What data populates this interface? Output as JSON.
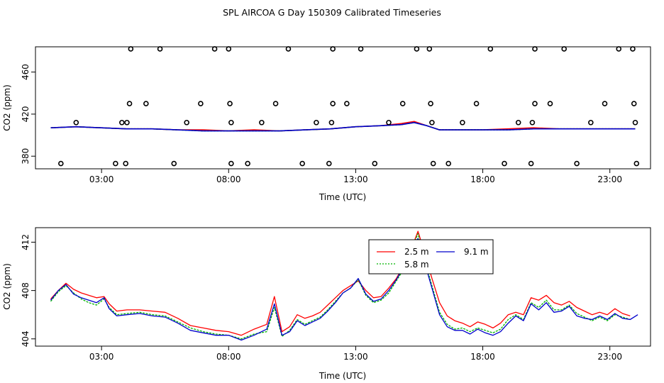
{
  "title": "SPL AIRCOA G  Day 150309  Calibrated Timeseries",
  "chart_data": [
    {
      "type": "scatter",
      "panel": "top",
      "xlabel": "Time (UTC)",
      "ylabel": "CO2 (ppm)",
      "xlim": [
        0.4,
        24.6
      ],
      "ylim": [
        368,
        484
      ],
      "xticks": [
        3,
        8,
        13,
        18,
        23
      ],
      "xtick_labels": [
        "03:00",
        "08:00",
        "13:00",
        "18:00",
        "23:00"
      ],
      "yticks": [
        380,
        420,
        460
      ],
      "ytick_labels": [
        "380",
        "420",
        "460"
      ],
      "markers": [
        {
          "x": 1.4,
          "y": 373
        },
        {
          "x": 2.0,
          "y": 412
        },
        {
          "x": 3.55,
          "y": 373
        },
        {
          "x": 3.8,
          "y": 412
        },
        {
          "x": 4.0,
          "y": 412
        },
        {
          "x": 3.95,
          "y": 373
        },
        {
          "x": 4.1,
          "y": 430
        },
        {
          "x": 4.15,
          "y": 482
        },
        {
          "x": 4.75,
          "y": 430
        },
        {
          "x": 5.3,
          "y": 482
        },
        {
          "x": 5.85,
          "y": 373
        },
        {
          "x": 6.35,
          "y": 412
        },
        {
          "x": 6.9,
          "y": 430
        },
        {
          "x": 7.45,
          "y": 482
        },
        {
          "x": 8.0,
          "y": 482
        },
        {
          "x": 8.05,
          "y": 430
        },
        {
          "x": 8.1,
          "y": 412
        },
        {
          "x": 8.1,
          "y": 373
        },
        {
          "x": 8.75,
          "y": 373
        },
        {
          "x": 9.3,
          "y": 412
        },
        {
          "x": 9.85,
          "y": 430
        },
        {
          "x": 10.35,
          "y": 482
        },
        {
          "x": 10.9,
          "y": 373
        },
        {
          "x": 11.45,
          "y": 412
        },
        {
          "x": 11.95,
          "y": 373
        },
        {
          "x": 12.05,
          "y": 412
        },
        {
          "x": 12.1,
          "y": 430
        },
        {
          "x": 12.1,
          "y": 482
        },
        {
          "x": 12.65,
          "y": 430
        },
        {
          "x": 13.2,
          "y": 482
        },
        {
          "x": 13.75,
          "y": 373
        },
        {
          "x": 14.3,
          "y": 412
        },
        {
          "x": 14.85,
          "y": 430
        },
        {
          "x": 15.4,
          "y": 482
        },
        {
          "x": 15.9,
          "y": 482
        },
        {
          "x": 15.95,
          "y": 430
        },
        {
          "x": 16.0,
          "y": 412
        },
        {
          "x": 16.05,
          "y": 373
        },
        {
          "x": 16.65,
          "y": 373
        },
        {
          "x": 17.2,
          "y": 412
        },
        {
          "x": 17.75,
          "y": 430
        },
        {
          "x": 18.3,
          "y": 482
        },
        {
          "x": 18.85,
          "y": 373
        },
        {
          "x": 19.4,
          "y": 412
        },
        {
          "x": 19.9,
          "y": 373
        },
        {
          "x": 19.95,
          "y": 412
        },
        {
          "x": 20.05,
          "y": 430
        },
        {
          "x": 20.05,
          "y": 482
        },
        {
          "x": 20.65,
          "y": 430
        },
        {
          "x": 21.2,
          "y": 482
        },
        {
          "x": 21.7,
          "y": 373
        },
        {
          "x": 22.25,
          "y": 412
        },
        {
          "x": 22.8,
          "y": 430
        },
        {
          "x": 23.35,
          "y": 482
        },
        {
          "x": 23.9,
          "y": 482
        },
        {
          "x": 23.95,
          "y": 430
        },
        {
          "x": 24.0,
          "y": 412
        },
        {
          "x": 24.05,
          "y": 373
        }
      ],
      "series": [
        {
          "name": "2.5 m",
          "color": "#ff0000",
          "x": [
            1.0,
            2.0,
            3.0,
            4.0,
            5.0,
            6.0,
            7.0,
            8.0,
            9.0,
            10.0,
            11.0,
            12.0,
            13.0,
            14.0,
            14.8,
            15.3,
            15.8,
            16.3,
            17.0,
            18.0,
            19.0,
            20.0,
            21.0,
            22.0,
            23.0,
            24.0
          ],
          "y": [
            407,
            408,
            407,
            406,
            406,
            405,
            405,
            404,
            405,
            404,
            405,
            406,
            408,
            409,
            411,
            413,
            409,
            405,
            405,
            405,
            406,
            407,
            406,
            406,
            406,
            406
          ]
        },
        {
          "name": "5.8 m",
          "color": "#00b400",
          "x": [
            1.0,
            2.0,
            3.0,
            4.0,
            5.0,
            6.0,
            7.0,
            8.0,
            9.0,
            10.0,
            11.0,
            12.0,
            13.0,
            14.0,
            14.8,
            15.3,
            15.8,
            16.3,
            17.0,
            18.0,
            19.0,
            20.0,
            21.0,
            22.0,
            23.0,
            24.0
          ],
          "y": [
            407,
            408,
            407,
            406,
            406,
            405,
            404,
            404,
            404,
            404,
            405,
            406,
            408,
            409,
            410,
            412,
            409,
            405,
            405,
            405,
            405,
            406,
            406,
            406,
            406,
            406
          ]
        },
        {
          "name": "9.1 m",
          "color": "#0000cc",
          "x": [
            1.0,
            2.0,
            3.0,
            4.0,
            5.0,
            6.0,
            7.0,
            8.0,
            9.0,
            10.0,
            11.0,
            12.0,
            13.0,
            14.0,
            14.8,
            15.3,
            15.8,
            16.3,
            17.0,
            18.0,
            19.0,
            20.0,
            21.0,
            22.0,
            23.0,
            24.0
          ],
          "y": [
            407,
            408,
            407,
            406,
            406,
            405,
            404,
            404,
            404,
            404,
            405,
            406,
            408,
            409,
            410,
            412,
            409,
            405,
            405,
            405,
            405,
            406,
            406,
            406,
            406,
            406
          ]
        }
      ]
    },
    {
      "type": "line",
      "panel": "bottom",
      "xlabel": "Time (UTC)",
      "ylabel": "CO2 (ppm)",
      "xlim": [
        0.4,
        24.6
      ],
      "ylim": [
        403.4,
        413.2
      ],
      "xticks": [
        3,
        8,
        13,
        18,
        23
      ],
      "xtick_labels": [
        "03:00",
        "08:00",
        "13:00",
        "18:00",
        "23:00"
      ],
      "yticks": [
        404,
        408,
        412
      ],
      "ytick_labels": [
        "404",
        "408",
        "412"
      ],
      "series": [
        {
          "name": "2.5 m",
          "color": "#ff0000",
          "x": [
            1.0,
            1.3,
            1.6,
            1.9,
            2.2,
            2.5,
            2.8,
            3.1,
            3.3,
            3.6,
            4.0,
            4.5,
            5.0,
            5.5,
            6.0,
            6.5,
            7.0,
            7.5,
            8.0,
            8.5,
            9.0,
            9.5,
            9.8,
            10.1,
            10.4,
            10.7,
            11.0,
            11.3,
            11.6,
            11.9,
            12.2,
            12.5,
            12.8,
            13.1,
            13.4,
            13.7,
            14.0,
            14.3,
            14.6,
            14.9,
            15.2,
            15.45,
            15.7,
            16.0,
            16.3,
            16.6,
            16.9,
            17.2,
            17.5,
            17.8,
            18.1,
            18.4,
            18.7,
            19.0,
            19.3,
            19.6,
            19.9,
            20.2,
            20.5,
            20.8,
            21.1,
            21.4,
            21.7,
            22.0,
            22.3,
            22.6,
            22.9,
            23.2,
            23.5,
            23.8
          ],
          "y": [
            407.3,
            408.0,
            408.6,
            408.1,
            407.8,
            407.6,
            407.4,
            407.5,
            406.9,
            406.3,
            406.4,
            406.4,
            406.3,
            406.2,
            405.7,
            405.1,
            404.9,
            404.7,
            404.6,
            404.3,
            404.8,
            405.2,
            407.5,
            404.6,
            405.0,
            406.0,
            405.7,
            405.9,
            406.2,
            406.8,
            407.4,
            408.0,
            408.4,
            408.8,
            408.0,
            407.4,
            407.5,
            408.2,
            409.0,
            410.1,
            411.5,
            412.9,
            411.2,
            409.0,
            407.0,
            405.9,
            405.5,
            405.3,
            405.0,
            405.4,
            405.2,
            404.9,
            405.3,
            406.0,
            406.2,
            406.0,
            407.4,
            407.2,
            407.6,
            407.0,
            406.8,
            407.1,
            406.6,
            406.3,
            406.0,
            406.2,
            406.0,
            406.5,
            406.1,
            405.9
          ]
        },
        {
          "name": "5.8 m",
          "color": "#00b400",
          "x": [
            1.0,
            1.3,
            1.6,
            1.9,
            2.2,
            2.5,
            2.8,
            3.1,
            3.3,
            3.6,
            4.0,
            4.5,
            5.0,
            5.5,
            6.0,
            6.5,
            7.0,
            7.5,
            8.0,
            8.5,
            9.0,
            9.5,
            9.8,
            10.1,
            10.4,
            10.7,
            11.0,
            11.3,
            11.6,
            11.9,
            12.2,
            12.5,
            12.8,
            13.1,
            13.4,
            13.7,
            14.0,
            14.3,
            14.6,
            14.9,
            15.2,
            15.45,
            15.7,
            16.0,
            16.3,
            16.6,
            16.9,
            17.2,
            17.5,
            17.8,
            18.1,
            18.4,
            18.7,
            19.0,
            19.3,
            19.6,
            19.9,
            20.2,
            20.5,
            20.8,
            21.1,
            21.4,
            21.7,
            22.0,
            22.3,
            22.6,
            22.9,
            23.2,
            23.5,
            23.8
          ],
          "y": [
            407.1,
            407.9,
            408.4,
            407.8,
            407.3,
            407.0,
            406.8,
            407.3,
            406.6,
            406.0,
            406.1,
            406.2,
            406.0,
            405.9,
            405.4,
            404.9,
            404.6,
            404.4,
            404.3,
            404.0,
            404.4,
            404.6,
            406.6,
            404.2,
            404.7,
            405.6,
            405.2,
            405.5,
            405.8,
            406.4,
            407.1,
            407.8,
            408.2,
            408.9,
            407.6,
            407.0,
            407.2,
            407.8,
            408.8,
            409.8,
            411.4,
            412.7,
            410.6,
            408.4,
            406.2,
            405.2,
            404.8,
            404.9,
            404.6,
            404.9,
            404.7,
            404.5,
            404.8,
            405.6,
            406.0,
            405.6,
            407.0,
            406.6,
            407.2,
            406.4,
            406.4,
            406.8,
            406.1,
            405.8,
            405.5,
            405.8,
            405.5,
            406.0,
            405.8,
            405.6
          ]
        },
        {
          "name": "9.1 m",
          "color": "#0000cc",
          "x": [
            1.0,
            1.3,
            1.6,
            1.9,
            2.2,
            2.5,
            2.8,
            3.1,
            3.3,
            3.6,
            4.0,
            4.5,
            5.0,
            5.5,
            6.0,
            6.5,
            7.0,
            7.5,
            8.0,
            8.5,
            9.0,
            9.5,
            9.8,
            10.1,
            10.4,
            10.7,
            11.0,
            11.3,
            11.6,
            11.9,
            12.2,
            12.5,
            12.8,
            13.1,
            13.4,
            13.7,
            14.0,
            14.3,
            14.6,
            14.9,
            15.2,
            15.45,
            15.7,
            16.0,
            16.3,
            16.6,
            16.9,
            17.2,
            17.5,
            17.8,
            18.1,
            18.4,
            18.7,
            19.0,
            19.3,
            19.6,
            19.9,
            20.2,
            20.5,
            20.8,
            21.1,
            21.4,
            21.7,
            22.0,
            22.3,
            22.6,
            22.9,
            23.2,
            23.5,
            23.8,
            24.1
          ],
          "y": [
            407.2,
            408.0,
            408.5,
            407.7,
            407.4,
            407.2,
            407.0,
            407.4,
            406.5,
            405.9,
            406.0,
            406.1,
            405.9,
            405.8,
            405.3,
            404.7,
            404.5,
            404.3,
            404.3,
            403.9,
            404.3,
            404.8,
            406.9,
            404.3,
            404.6,
            405.5,
            405.1,
            405.4,
            405.7,
            406.3,
            407.0,
            407.8,
            408.2,
            409.0,
            407.7,
            407.1,
            407.3,
            408.0,
            408.9,
            410.0,
            411.6,
            412.3,
            410.4,
            408.2,
            406.0,
            405.0,
            404.7,
            404.7,
            404.4,
            404.8,
            404.5,
            404.3,
            404.6,
            405.3,
            405.9,
            405.5,
            406.9,
            406.4,
            407.0,
            406.2,
            406.3,
            406.7,
            405.9,
            405.7,
            405.6,
            405.9,
            405.6,
            406.1,
            405.7,
            405.6,
            406.0
          ]
        }
      ],
      "legend": {
        "position": "top-center",
        "entries": [
          "2.5 m",
          "5.8 m",
          "9.1 m"
        ]
      }
    }
  ]
}
